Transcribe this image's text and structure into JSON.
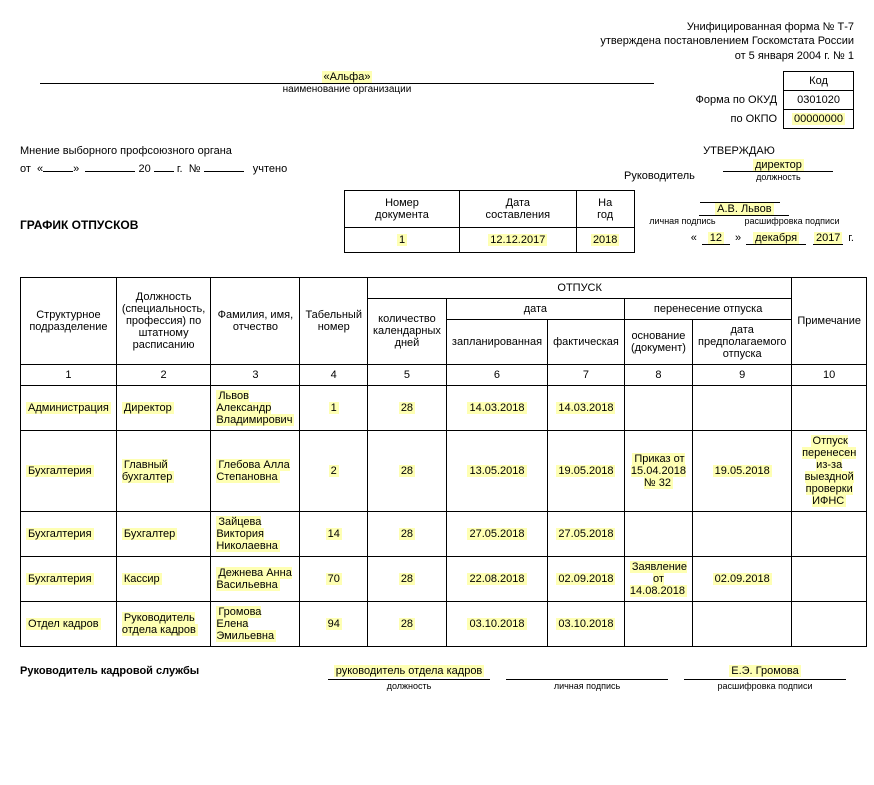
{
  "form_header": {
    "line1": "Унифицированная форма № Т-7",
    "line2": "утверждена постановлением Госкомстата России",
    "line3": "от 5 января 2004 г. № 1"
  },
  "codes": {
    "kod_label": "Код",
    "okud_label": "Форма по ОКУД",
    "okud_value": "0301020",
    "okpo_label": "по ОКПО",
    "okpo_value": "00000000"
  },
  "org": {
    "name": "«Альфа»",
    "caption": "наименование организации"
  },
  "opinion": {
    "title": "Мнение выборного профсоюзного органа",
    "ot": "от",
    "g": "20",
    "god": "г.",
    "no": "№",
    "uchteno": "учтено",
    "day": "",
    "month": "",
    "year_suffix": "",
    "number": ""
  },
  "approve": {
    "title": "УТВЕРЖДАЮ",
    "leader": "Руководитель",
    "position_value": "директор",
    "position_caption": "должность",
    "sign_caption": "личная подпись",
    "name_value": "А.В. Львов",
    "name_caption": "расшифровка подписи",
    "date_day": "12",
    "date_month": "декабря",
    "date_year": "2017",
    "date_g": "г."
  },
  "title": "ГРАФИК ОТПУСКОВ",
  "meta": {
    "h_num": "Номер документа",
    "h_date": "Дата составления",
    "h_year": "На год",
    "num": "1",
    "date": "12.12.2017",
    "year": "2018"
  },
  "table": {
    "h_otpusk": "ОТПУСК",
    "h_unit": "Структурное подразделение",
    "h_position": "Должность (специальность, профессия) по штатному расписанию",
    "h_fio": "Фамилия, имя, отчество",
    "h_tab": "Табельный номер",
    "h_days": "количество календарных дней",
    "h_date": "дата",
    "h_planned": "запланированная",
    "h_actual": "фактическая",
    "h_transfer": "перенесение отпуска",
    "h_basis": "основание (документ)",
    "h_newdate": "дата предполагаемого отпуска",
    "h_note": "Примечание",
    "nums": [
      "1",
      "2",
      "3",
      "4",
      "5",
      "6",
      "7",
      "8",
      "9",
      "10"
    ],
    "rows": [
      {
        "unit": "Администрация",
        "pos": "Директор",
        "fio": "Львов Александр Владимирович",
        "tab": "1",
        "days": "28",
        "plan": "14.03.2018",
        "fact": "14.03.2018",
        "basis": "",
        "newdate": "",
        "note": ""
      },
      {
        "unit": "Бухгалтерия",
        "pos": "Главный бухгалтер",
        "fio": "Глебова Алла Степановна",
        "tab": "2",
        "days": "28",
        "plan": "13.05.2018",
        "fact": "19.05.2018",
        "basis": "Приказ от 15.04.2018 № 32",
        "newdate": "19.05.2018",
        "note": "Отпуск перенесен из-за выездной проверки ИФНС"
      },
      {
        "unit": "Бухгалтерия",
        "pos": "Бухгалтер",
        "fio": "Зайцева Виктория Николаевна",
        "tab": "14",
        "days": "28",
        "plan": "27.05.2018",
        "fact": "27.05.2018",
        "basis": "",
        "newdate": "",
        "note": ""
      },
      {
        "unit": "Бухгалтерия",
        "pos": "Кассир",
        "fio": "Дежнева Анна Васильевна",
        "tab": "70",
        "days": "28",
        "plan": "22.08.2018",
        "fact": "02.09.2018",
        "basis": "Заявление от 14.08.2018",
        "newdate": "02.09.2018",
        "note": ""
      },
      {
        "unit": "Отдел кадров",
        "pos": "Руководитель отдела кадров",
        "fio": "Громова Елена Эмильевна",
        "tab": "94",
        "days": "28",
        "plan": "03.10.2018",
        "fact": "03.10.2018",
        "basis": "",
        "newdate": "",
        "note": ""
      }
    ]
  },
  "footer": {
    "label": "Руководитель кадровой службы",
    "position_value": "руководитель отдела кадров",
    "position_caption": "должность",
    "sign_caption": "личная подпись",
    "name_value": "Е.Э. Громова",
    "name_caption": "расшифровка подписи"
  },
  "style": {
    "highlight_color": "#feffb3"
  }
}
